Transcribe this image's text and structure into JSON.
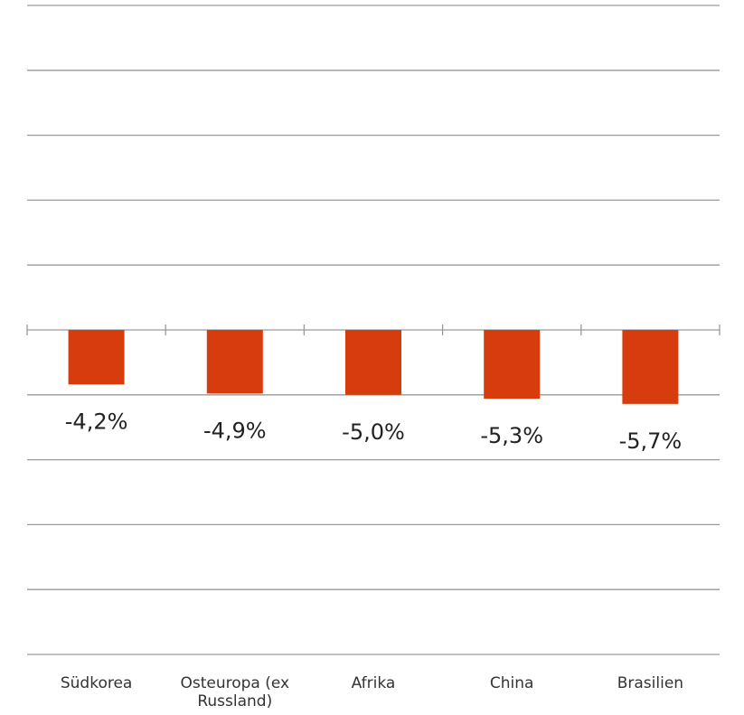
{
  "chart_data": {
    "type": "bar",
    "categories": [
      "Südkorea",
      "Osteuropa (ex Russland)",
      "Afrika",
      "China",
      "Brasilien"
    ],
    "values": [
      -4.2,
      -4.9,
      -5.0,
      -5.3,
      -5.7
    ],
    "value_labels": [
      "-4,2%",
      "-4,9%",
      "-5,0%",
      "-5,3%",
      "-5,7%"
    ],
    "color": "#d73c0f",
    "ylim": [
      -25,
      25
    ],
    "yticks": [
      -25,
      -20,
      -15,
      -10,
      -5,
      0,
      5,
      10,
      15,
      20,
      25
    ],
    "grid": true
  }
}
